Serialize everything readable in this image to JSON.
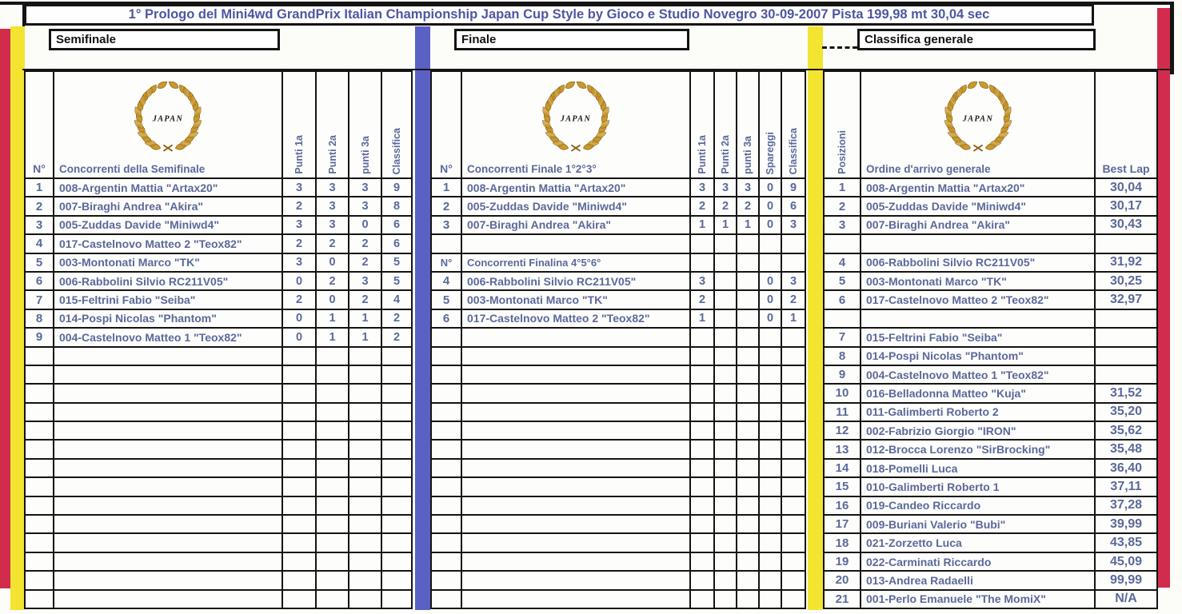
{
  "title": "1° Prologo del Mini4wd GrandPrix Italian Championship Japan Cup Style by Gioco e Studio Novegro 30-09-2007 Pista 199,98 mt 30,04 sec",
  "logo": {
    "text": "JAPAN"
  },
  "colors": {
    "accent_red": "#d22c4c",
    "accent_yellow": "#f2e430",
    "accent_blue": "#5a61c4",
    "text_blue": "#5b699b",
    "title_blue": "#4d57a1",
    "wreath_gold": "#c9992f",
    "border_black": "#141414"
  },
  "semifinale": {
    "label": "Semifinale",
    "col_num": "N°",
    "col_name": "Concorrenti della Semifinale",
    "col_p1": "Punti 1a",
    "col_p2": "Punti 2a",
    "col_p3": "punti 3a",
    "col_cl": "Classifica",
    "empty_rows": 14,
    "rows": [
      {
        "num": "1",
        "name": "008-Argentin Mattia \"Artax20\"",
        "p1": "3",
        "p2": "3",
        "p3": "3",
        "cl": "9"
      },
      {
        "num": "2",
        "name": "007-Biraghi Andrea \"Akira\"",
        "p1": "2",
        "p2": "3",
        "p3": "3",
        "cl": "8"
      },
      {
        "num": "3",
        "name": "005-Zuddas Davide \"Miniwd4\"",
        "p1": "3",
        "p2": "3",
        "p3": "0",
        "cl": "6"
      },
      {
        "num": "4",
        "name": "017-Castelnovo Matteo 2 \"Teox82\"",
        "p1": "2",
        "p2": "2",
        "p3": "2",
        "cl": "6"
      },
      {
        "num": "5",
        "name": "003-Montonati Marco \"TK\"",
        "p1": "3",
        "p2": "0",
        "p3": "2",
        "cl": "5"
      },
      {
        "num": "6",
        "name": "006-Rabbolini Silvio RC211V05\"",
        "p1": "0",
        "p2": "2",
        "p3": "3",
        "cl": "5"
      },
      {
        "num": "7",
        "name": "015-Feltrini Fabio \"Seiba\"",
        "p1": "2",
        "p2": "0",
        "p3": "2",
        "cl": "4"
      },
      {
        "num": "8",
        "name": "014-Pospi Nicolas \"Phantom\"",
        "p1": "0",
        "p2": "1",
        "p3": "1",
        "cl": "2"
      },
      {
        "num": "9",
        "name": "004-Castelnovo Matteo 1 \"Teox82\"",
        "p1": "0",
        "p2": "1",
        "p3": "1",
        "cl": "2"
      }
    ]
  },
  "finale": {
    "label": "Finale",
    "col_num": "N°",
    "col_name": "Concorrenti Finale 1°2°3°",
    "col_p1": "Punti 1a",
    "col_p2": "Punti 2a",
    "col_p3": "punti 3a",
    "col_sp": "Spareggi",
    "col_cl": "Classifica",
    "finalina_num": "N°",
    "finalina_label": "Concorrenti  Finalina 4°5°6°",
    "empty_rows": 15,
    "rows": [
      {
        "num": "1",
        "name": "008-Argentin Mattia \"Artax20\"",
        "p1": "3",
        "p2": "3",
        "p3": "3",
        "sp": "0",
        "cl": "9"
      },
      {
        "num": "2",
        "name": "005-Zuddas Davide \"Miniwd4\"",
        "p1": "2",
        "p2": "2",
        "p3": "2",
        "sp": "0",
        "cl": "6"
      },
      {
        "num": "3",
        "name": "007-Biraghi Andrea \"Akira\"",
        "p1": "1",
        "p2": "1",
        "p3": "1",
        "sp": "0",
        "cl": "3"
      },
      {
        "num": "",
        "name": "",
        "p1": "",
        "p2": "",
        "p3": "",
        "sp": "",
        "cl": ""
      },
      {
        "subheader": true
      },
      {
        "num": "4",
        "name": "006-Rabbolini Silvio RC211V05\"",
        "p1": "3",
        "p2": "",
        "p3": "",
        "sp": "0",
        "cl": "3"
      },
      {
        "num": "5",
        "name": "003-Montonati Marco \"TK\"",
        "p1": "2",
        "p2": "",
        "p3": "",
        "sp": "0",
        "cl": "2"
      },
      {
        "num": "6",
        "name": "017-Castelnovo Matteo 2 \"Teox82\"",
        "p1": "1",
        "p2": "",
        "p3": "",
        "sp": "0",
        "cl": "1"
      }
    ]
  },
  "classifica": {
    "label": "Classifica generale",
    "col_pos": "Posizioni",
    "col_name": "Ordine d'arrivo generale",
    "col_best": "Best Lap",
    "empty_rows": 0,
    "rows": [
      {
        "pos": "1",
        "name": "008-Argentin Mattia \"Artax20\"",
        "best": "30,04"
      },
      {
        "pos": "2",
        "name": "005-Zuddas Davide \"Miniwd4\"",
        "best": "30,17"
      },
      {
        "pos": "3",
        "name": "007-Biraghi Andrea \"Akira\"",
        "best": "30,43"
      },
      {
        "pos": "",
        "name": "",
        "best": ""
      },
      {
        "pos": "4",
        "name": "006-Rabbolini Silvio RC211V05\"",
        "best": "31,92"
      },
      {
        "pos": "5",
        "name": "003-Montonati Marco \"TK\"",
        "best": "30,25"
      },
      {
        "pos": "6",
        "name": "017-Castelnovo Matteo 2 \"Teox82\"",
        "best": "32,97"
      },
      {
        "pos": "",
        "name": "",
        "best": ""
      },
      {
        "pos": "7",
        "name": "015-Feltrini Fabio \"Seiba\"",
        "best": ""
      },
      {
        "pos": "8",
        "name": "014-Pospi Nicolas \"Phantom\"",
        "best": ""
      },
      {
        "pos": "9",
        "name": "004-Castelnovo Matteo 1 \"Teox82\"",
        "best": ""
      },
      {
        "pos": "10",
        "name": "016-Belladonna Matteo \"Kuja\"",
        "best": "31,52"
      },
      {
        "pos": "11",
        "name": "011-Galimberti Roberto 2",
        "best": "35,20"
      },
      {
        "pos": "12",
        "name": "002-Fabrizio Giorgio \"IRON\"",
        "best": "35,62"
      },
      {
        "pos": "13",
        "name": "012-Brocca Lorenzo \"SirBrocking\"",
        "best": "35,48"
      },
      {
        "pos": "14",
        "name": "018-Pomelli Luca",
        "best": "36,40"
      },
      {
        "pos": "15",
        "name": "010-Galimberti Roberto 1",
        "best": "37,11"
      },
      {
        "pos": "16",
        "name": "019-Candeo Riccardo",
        "best": "37,28"
      },
      {
        "pos": "17",
        "name": "009-Buriani Valerio \"Bubi\"",
        "best": "39,99"
      },
      {
        "pos": "18",
        "name": "021-Zorzetto Luca",
        "best": "43,85"
      },
      {
        "pos": "19",
        "name": "022-Carminati Riccardo",
        "best": "45,09"
      },
      {
        "pos": "20",
        "name": "013-Andrea Radaelli",
        "best": "99,99"
      },
      {
        "pos": "21",
        "name": "001-Perlo Emanuele \"The MomiX\"",
        "best": "N/A"
      }
    ]
  }
}
